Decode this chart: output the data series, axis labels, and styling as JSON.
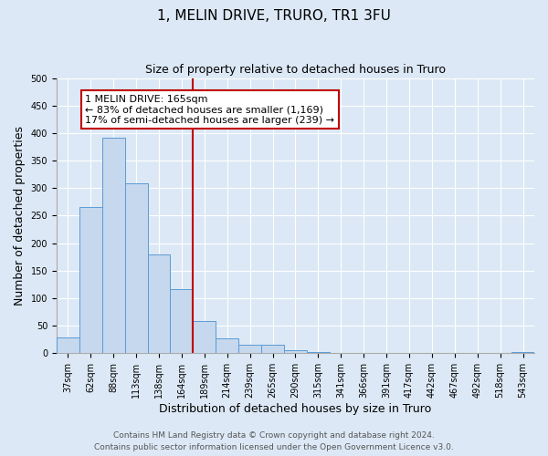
{
  "title": "1, MELIN DRIVE, TRURO, TR1 3FU",
  "subtitle": "Size of property relative to detached houses in Truro",
  "xlabel": "Distribution of detached houses by size in Truro",
  "ylabel": "Number of detached properties",
  "bar_labels": [
    "37sqm",
    "62sqm",
    "88sqm",
    "113sqm",
    "138sqm",
    "164sqm",
    "189sqm",
    "214sqm",
    "239sqm",
    "265sqm",
    "290sqm",
    "315sqm",
    "341sqm",
    "366sqm",
    "391sqm",
    "417sqm",
    "442sqm",
    "467sqm",
    "492sqm",
    "518sqm",
    "543sqm"
  ],
  "bar_values": [
    29,
    265,
    392,
    308,
    180,
    116,
    58,
    27,
    16,
    15,
    5,
    3,
    1,
    0,
    0,
    0,
    0,
    0,
    0,
    0,
    3
  ],
  "bar_color": "#c5d8ed",
  "bar_edgecolor": "#5b9bd5",
  "vline_x": 5.5,
  "vline_color": "#c00000",
  "annotation_text": "1 MELIN DRIVE: 165sqm\n← 83% of detached houses are smaller (1,169)\n17% of semi-detached houses are larger (239) →",
  "annotation_box_edgecolor": "#c00000",
  "ylim": [
    0,
    500
  ],
  "yticks": [
    0,
    50,
    100,
    150,
    200,
    250,
    300,
    350,
    400,
    450,
    500
  ],
  "footer_line1": "Contains HM Land Registry data © Crown copyright and database right 2024.",
  "footer_line2": "Contains public sector information licensed under the Open Government Licence v3.0.",
  "background_color": "#dce8f5",
  "plot_background": "#dce8f5",
  "grid_color": "#ffffff",
  "title_fontsize": 11,
  "subtitle_fontsize": 9,
  "axis_label_fontsize": 9,
  "tick_fontsize": 7,
  "annotation_fontsize": 8,
  "footer_fontsize": 6.5
}
